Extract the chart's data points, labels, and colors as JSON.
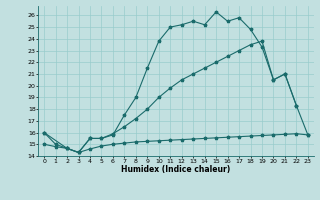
{
  "xlabel": "Humidex (Indice chaleur)",
  "xlim": [
    -0.5,
    23.5
  ],
  "ylim": [
    14,
    26.8
  ],
  "yticks": [
    14,
    15,
    16,
    17,
    18,
    19,
    20,
    21,
    22,
    23,
    24,
    25,
    26
  ],
  "xticks": [
    0,
    1,
    2,
    3,
    4,
    5,
    6,
    7,
    8,
    9,
    10,
    11,
    12,
    13,
    14,
    15,
    16,
    17,
    18,
    19,
    20,
    21,
    22,
    23
  ],
  "bg_color": "#c2e0e0",
  "line_color": "#1a6b6b",
  "grid_color": "#99cccc",
  "line1_x": [
    0,
    1,
    2,
    3,
    4,
    5,
    6,
    7,
    8,
    9,
    10,
    11,
    12,
    13,
    14,
    15,
    16,
    17,
    18,
    19,
    20,
    21,
    22,
    23
  ],
  "line1_y": [
    15.0,
    14.8,
    14.65,
    14.3,
    14.6,
    14.85,
    15.0,
    15.1,
    15.2,
    15.25,
    15.3,
    15.35,
    15.4,
    15.45,
    15.5,
    15.55,
    15.6,
    15.65,
    15.7,
    15.75,
    15.8,
    15.85,
    15.9,
    15.8
  ],
  "line2_x": [
    0,
    1,
    2,
    3,
    4,
    5,
    6,
    7,
    8,
    9,
    10,
    11,
    12,
    13,
    14,
    15,
    16,
    17,
    18,
    19,
    20,
    21,
    22
  ],
  "line2_y": [
    16.0,
    15.0,
    14.65,
    14.3,
    15.5,
    15.5,
    15.8,
    17.5,
    19.0,
    21.5,
    23.8,
    25.0,
    25.2,
    25.5,
    25.2,
    26.3,
    25.5,
    25.8,
    24.8,
    23.3,
    20.5,
    21.0,
    18.3
  ],
  "line3_x": [
    0,
    2,
    3,
    4,
    5,
    6,
    7,
    8,
    9,
    10,
    11,
    12,
    13,
    14,
    15,
    16,
    17,
    18,
    19,
    20,
    21,
    22,
    23
  ],
  "line3_y": [
    16.0,
    14.65,
    14.3,
    15.5,
    15.5,
    15.9,
    16.5,
    17.2,
    18.0,
    19.0,
    19.8,
    20.5,
    21.0,
    21.5,
    22.0,
    22.5,
    23.0,
    23.5,
    23.8,
    20.5,
    21.0,
    18.3,
    15.8
  ]
}
